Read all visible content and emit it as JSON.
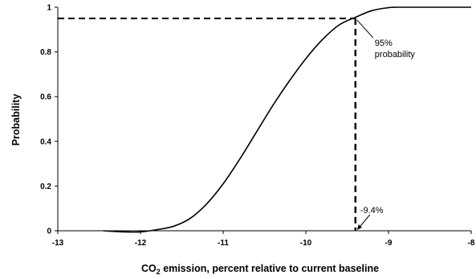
{
  "chart_data": {
    "type": "line",
    "xlabel_prefix": "CO",
    "xlabel_sub": "2",
    "xlabel_rest": " emission, percent relative to current baseline",
    "ylabel": "Probability",
    "xlim": [
      -13,
      -8
    ],
    "ylim": [
      0,
      1
    ],
    "x_ticks": [
      -13,
      -12,
      -11,
      -10,
      -9,
      -8
    ],
    "y_ticks": [
      0,
      0.2,
      0.4,
      0.6,
      0.8,
      1
    ],
    "x_tick_labels": [
      "-13",
      "-12",
      "-11",
      "-10",
      "-9",
      "-8"
    ],
    "y_tick_labels": [
      "0",
      "0.2",
      "0.4",
      "0.6",
      "0.8",
      "1"
    ],
    "grid": false,
    "series": [
      {
        "x": [
          -12.45,
          -12.2,
          -12.0,
          -11.8,
          -11.6,
          -11.4,
          -11.2,
          -11.0,
          -10.8,
          -10.6,
          -10.4,
          -10.2,
          -10.0,
          -9.8,
          -9.6,
          -9.4,
          -9.2,
          -9.0,
          -8.9,
          -8.5,
          -8.0
        ],
        "y": [
          0.0,
          -0.005,
          -0.005,
          0.005,
          0.02,
          0.055,
          0.12,
          0.21,
          0.32,
          0.44,
          0.56,
          0.67,
          0.77,
          0.855,
          0.92,
          0.955,
          0.985,
          0.998,
          1.0,
          1.0,
          1.0
        ]
      }
    ],
    "reference": {
      "x": -9.4,
      "y": 0.95
    },
    "annotations": {
      "probability_line1": "95%",
      "probability_line2": "probability",
      "x_value": "-9.4%"
    }
  }
}
